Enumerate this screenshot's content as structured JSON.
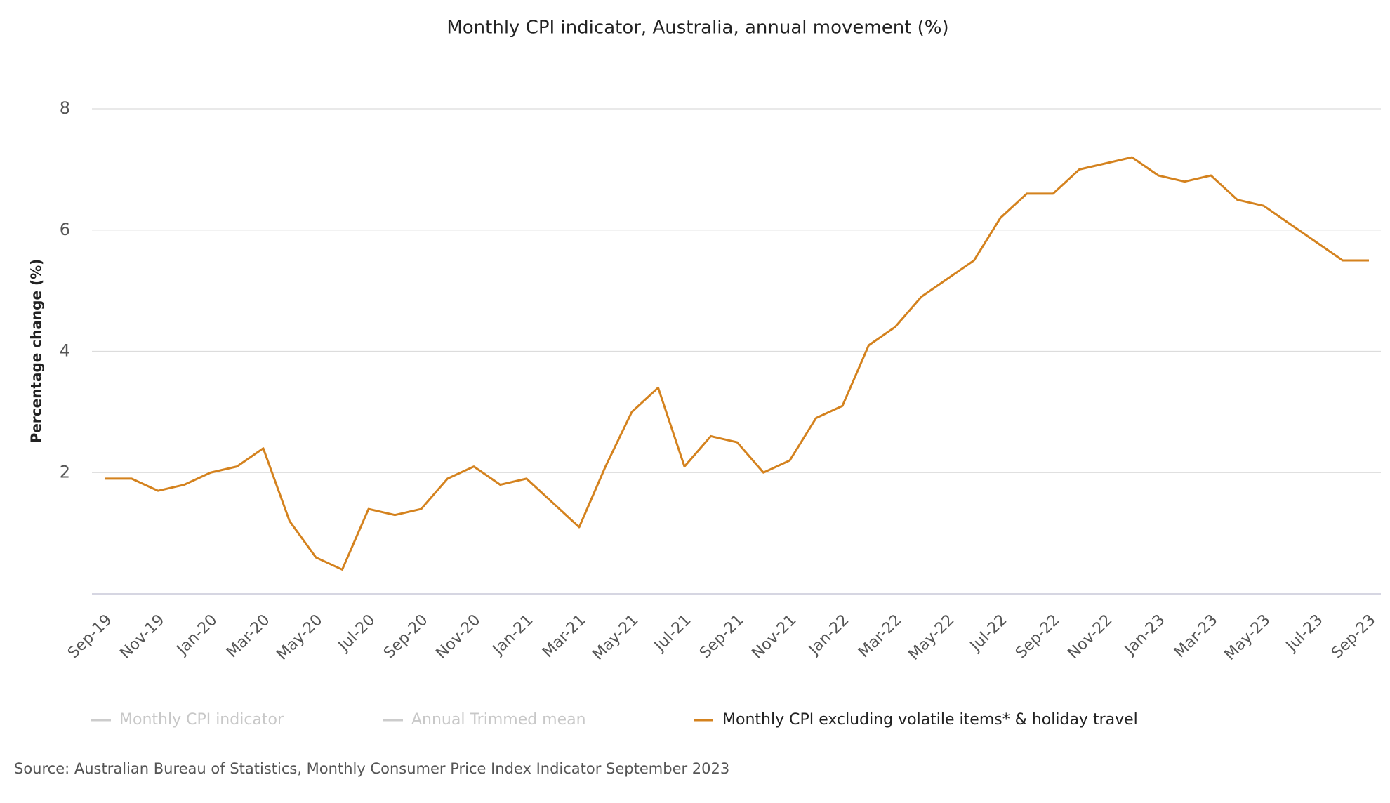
{
  "chart_data": {
    "type": "line",
    "title": "Monthly CPI indicator, Australia, annual movement (%)",
    "y_label": "Percentage change (%)",
    "source": "Source: Australian Bureau of Statistics, Monthly Consumer Price Index Indicator September 2023",
    "categories": [
      "Sep-19",
      null,
      "Nov-19",
      null,
      "Jan-20",
      null,
      "Mar-20",
      null,
      "May-20",
      null,
      "Jul-20",
      null,
      "Sep-20",
      null,
      "Nov-20",
      null,
      "Jan-21",
      null,
      "Mar-21",
      null,
      "May-21",
      null,
      "Jul-21",
      null,
      "Sep-21",
      null,
      "Nov-21",
      null,
      "Jan-22",
      null,
      "Mar-22",
      null,
      "May-22",
      null,
      "Jul-22",
      null,
      "Sep-22",
      null,
      "Nov-22",
      null,
      "Jan-23",
      null,
      "Mar-23",
      null,
      "May-23",
      null,
      "Jul-23",
      null,
      "Sep-23"
    ],
    "series": [
      {
        "name": "Monthly CPI excluding volatile items* & holiday travel",
        "color": "#d4821e",
        "values": [
          1.9,
          1.9,
          1.7,
          1.8,
          2.0,
          2.1,
          2.4,
          1.2,
          0.6,
          0.4,
          1.4,
          1.3,
          1.4,
          1.9,
          2.1,
          1.8,
          1.9,
          1.5,
          1.1,
          2.1,
          3.0,
          3.4,
          2.1,
          2.6,
          2.5,
          2.0,
          2.2,
          2.9,
          3.1,
          4.1,
          4.4,
          4.9,
          5.2,
          5.5,
          6.2,
          6.6,
          6.6,
          7.0,
          7.1,
          7.2,
          6.9,
          6.8,
          6.9,
          6.5,
          6.4,
          6.1,
          5.8,
          5.5,
          5.5
        ]
      }
    ],
    "hidden_legend": [
      {
        "name": "Monthly CPI indicator",
        "color": "#cccccc"
      },
      {
        "name": "Annual Trimmed mean",
        "color": "#cccccc"
      }
    ],
    "ylim": [
      0,
      8
    ],
    "yticks": [
      2,
      4,
      6,
      8
    ],
    "grid": true
  }
}
